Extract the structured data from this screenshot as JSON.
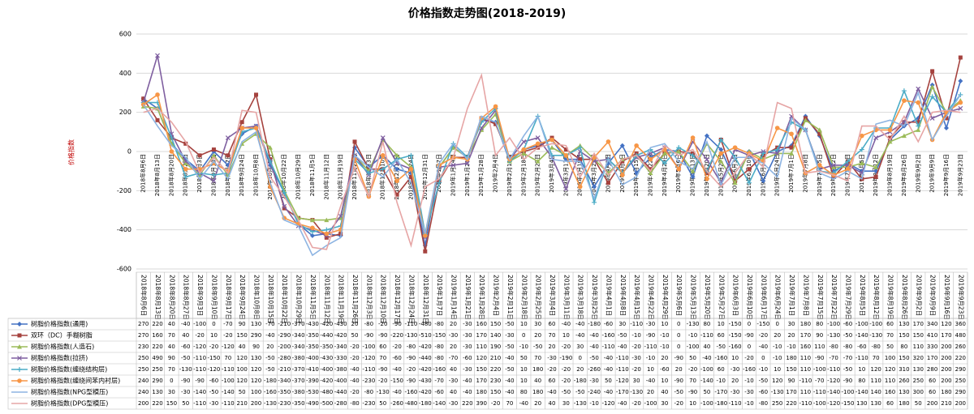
{
  "chart_data": {
    "type": "line",
    "title": "价格指数走势图(2018-2019)",
    "y_label": "价格指数",
    "categories": [
      "2018年8月6日",
      "2018年8月13日",
      "2018年8月20日",
      "2018年8月27日",
      "2018年9月3日",
      "2018年9月10日",
      "2018年9月17日",
      "2018年9月24日",
      "2018年10月8日",
      "2018年10月15日",
      "2018年10月22日",
      "2018年10月29日",
      "2018年11月5日",
      "2018年11月12日",
      "2018年11月19日",
      "2018年11月26日",
      "2018年12月3日",
      "2018年12月10日",
      "2018年12月17日",
      "2018年12月24日",
      "2018年12月31日",
      "2019年1月7日",
      "2019年1月14日",
      "2019年1月21日",
      "2019年1月28日",
      "2019年2月4日",
      "2019年2月11日",
      "2019年2月18日",
      "2019年2月25日",
      "2019年3月4日",
      "2019年3月11日",
      "2019年3月18日",
      "2019年3月25日",
      "2019年4月1日",
      "2019年4月8日",
      "2019年4月15日",
      "2019年4月22日",
      "2019年4月29日",
      "2019年5月6日",
      "2019年5月13日",
      "2019年5月20日",
      "2019年5月27日",
      "2019年6月3日",
      "2019年6月10日",
      "2019年6月17日",
      "2019年6月24日",
      "2019年7月1日",
      "2019年7月8日",
      "2019年7月15日",
      "2019年7月22日",
      "2019年7月29日",
      "2019年8月5日",
      "2019年8月12日",
      "2019年8月19日",
      "2019年8月26日",
      "2019年9月2日",
      "2019年9月9日",
      "2019年9月16日",
      "2019年9月23日"
    ],
    "series": [
      {
        "name": "树脂价格指数(通用)",
        "color": "#4472c4",
        "marker": "diamond",
        "values": [
          270,
          220,
          40,
          -40,
          -100,
          0,
          -70,
          90,
          130,
          -70,
          -210,
          -370,
          -430,
          -420,
          -430,
          20,
          -80,
          -20,
          -90,
          -110,
          -480,
          -80,
          20,
          -30,
          160,
          150,
          -50,
          10,
          30,
          60,
          -40,
          -40,
          -180,
          -60,
          30,
          -110,
          -30,
          10,
          0,
          -130,
          80,
          10,
          -150,
          0,
          -150,
          0,
          30,
          180,
          80,
          -100,
          -60,
          -100,
          -100,
          60,
          130,
          170,
          340,
          120,
          360
        ]
      },
      {
        "name": "双环（DC）手糊树脂",
        "color": "#a5423e",
        "marker": "square",
        "values": [
          270,
          160,
          70,
          40,
          -20,
          10,
          -20,
          150,
          290,
          -40,
          -290,
          -340,
          -350,
          -440,
          -420,
          50,
          -90,
          -90,
          -220,
          -130,
          -510,
          -150,
          -30,
          -30,
          170,
          140,
          -30,
          0,
          20,
          70,
          10,
          -40,
          -40,
          -160,
          -50,
          -10,
          -90,
          -10,
          0,
          -10,
          -110,
          60,
          -150,
          -90,
          -20,
          20,
          20,
          170,
          90,
          -130,
          -50,
          -140,
          -130,
          70,
          150,
          150,
          410,
          170,
          480
        ]
      },
      {
        "name": "树脂价格指数(人造石)",
        "color": "#9bbb59",
        "marker": "triangle",
        "values": [
          230,
          220,
          40,
          -60,
          -120,
          -20,
          -120,
          40,
          90,
          20,
          -200,
          -340,
          -350,
          -350,
          -340,
          -20,
          -100,
          60,
          -20,
          -80,
          -420,
          -80,
          20,
          -30,
          110,
          190,
          -50,
          -10,
          -50,
          20,
          -20,
          30,
          -40,
          -110,
          -40,
          -20,
          -110,
          -10,
          0,
          -100,
          40,
          -50,
          -160,
          0,
          -40,
          -10,
          -10,
          160,
          110,
          -80,
          -80,
          -60,
          -80,
          50,
          80,
          110,
          330,
          200,
          260
        ]
      },
      {
        "name": "树脂价格指数(拉挤)",
        "color": "#7f5fa0",
        "marker": "cross",
        "values": [
          250,
          490,
          90,
          -50,
          -110,
          -150,
          70,
          120,
          130,
          -50,
          -280,
          -380,
          -400,
          -430,
          -330,
          -20,
          -120,
          70,
          -60,
          -90,
          -440,
          -80,
          -70,
          -60,
          120,
          210,
          -40,
          50,
          70,
          -30,
          -190,
          0,
          -50,
          -40,
          -110,
          -30,
          -10,
          20,
          -90,
          50,
          -40,
          -160,
          10,
          -20,
          0,
          -10,
          180,
          110,
          -90,
          -70,
          -70,
          -110,
          70,
          100,
          150,
          320,
          170,
          200,
          220
        ]
      },
      {
        "name": "树脂价格指数(缠绕结构层)",
        "color": "#4bacc6",
        "marker": "star",
        "values": [
          250,
          250,
          70,
          -130,
          -110,
          -120,
          -110,
          100,
          120,
          -50,
          -210,
          -370,
          -410,
          -400,
          -380,
          -40,
          -110,
          -90,
          -40,
          -20,
          -420,
          -160,
          40,
          -30,
          150,
          220,
          -50,
          10,
          180,
          -20,
          -20,
          20,
          -260,
          -40,
          -110,
          -20,
          10,
          -60,
          20,
          -20,
          -100,
          60,
          -30,
          -160,
          -10,
          10,
          150,
          110,
          -100,
          -110,
          -50,
          10,
          120,
          120,
          310,
          130,
          280,
          200,
          290
        ]
      },
      {
        "name": "树脂价格指数(缠绕间苯内衬层)",
        "color": "#f79646",
        "marker": "circle",
        "values": [
          240,
          290,
          0,
          -90,
          -90,
          -60,
          -100,
          120,
          120,
          -180,
          -340,
          -370,
          -390,
          -420,
          -400,
          -40,
          -230,
          -20,
          -150,
          -90,
          -430,
          -70,
          -30,
          -40,
          170,
          230,
          -40,
          10,
          40,
          60,
          -20,
          -180,
          -30,
          50,
          -120,
          30,
          -40,
          10,
          -90,
          70,
          -140,
          -10,
          20,
          -10,
          -50,
          120,
          90,
          -110,
          -70,
          -120,
          -90,
          80,
          110,
          110,
          260,
          250,
          60,
          200,
          250
        ]
      },
      {
        "name": "树脂价格指数(NPG型模压)",
        "color": "#8db4e2",
        "marker": "none",
        "values": [
          240,
          130,
          30,
          -30,
          -140,
          -50,
          -140,
          50,
          100,
          -160,
          -350,
          -380,
          -530,
          -480,
          -440,
          -20,
          -80,
          -130,
          -40,
          -160,
          -420,
          -60,
          40,
          -40,
          180,
          150,
          -40,
          80,
          180,
          -40,
          -50,
          -50,
          -240,
          -40,
          -170,
          -130,
          20,
          40,
          -50,
          -90,
          50,
          -170,
          -30,
          -30,
          -60,
          -130,
          170,
          110,
          -110,
          -140,
          -100,
          -140,
          140,
          160,
          130,
          300,
          60,
          180,
          290
        ]
      },
      {
        "name": "树脂价格指数(DPG型模压)",
        "color": "#e6a5a5",
        "marker": "none",
        "values": [
          200,
          220,
          150,
          50,
          -110,
          -30,
          -110,
          210,
          200,
          -130,
          -230,
          -350,
          -490,
          -500,
          -280,
          -80,
          -230,
          50,
          -260,
          -480,
          -180,
          -140,
          -30,
          220,
          390,
          -20,
          70,
          -40,
          20,
          40,
          30,
          -130,
          -10,
          -120,
          -40,
          -20,
          -100,
          30,
          -20,
          10,
          -100,
          -180,
          -110,
          -10,
          -80,
          250,
          220,
          -110,
          -100,
          -120,
          -150,
          130,
          130,
          60,
          180,
          50,
          200,
          210,
          200
        ]
      }
    ],
    "ylim": [
      -600,
      600
    ],
    "yticks": [
      -600,
      -400,
      -200,
      0,
      200,
      400,
      600
    ],
    "grid": true
  }
}
